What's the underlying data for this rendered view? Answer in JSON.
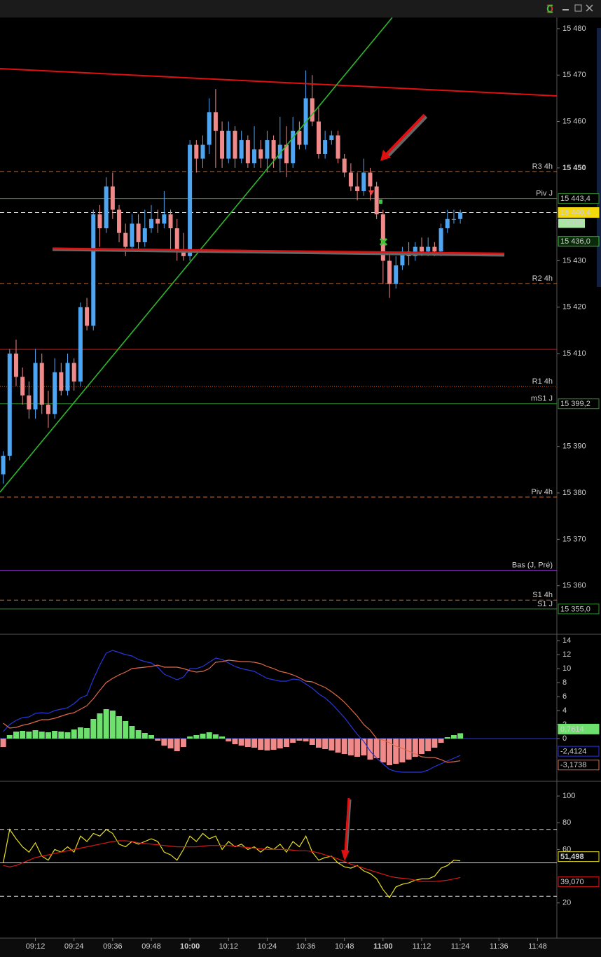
{
  "chart_data": [
    {
      "type": "candlestick",
      "x": [
        "09:02",
        "09:04",
        "09:06",
        "09:08",
        "09:10",
        "09:12",
        "09:14",
        "09:16",
        "09:18",
        "09:20",
        "09:22",
        "09:24",
        "09:26",
        "09:28",
        "09:30",
        "09:32",
        "09:34",
        "09:36",
        "09:38",
        "09:40",
        "09:42",
        "09:44",
        "09:46",
        "09:48",
        "09:50",
        "09:52",
        "09:54",
        "09:56",
        "09:58",
        "10:00",
        "10:02",
        "10:04",
        "10:06",
        "10:08",
        "10:10",
        "10:12",
        "10:14",
        "10:16",
        "10:18",
        "10:20",
        "10:22",
        "10:24",
        "10:26",
        "10:28",
        "10:30",
        "10:32",
        "10:34",
        "10:36",
        "10:38",
        "10:40",
        "10:42",
        "10:44",
        "10:46",
        "10:48",
        "10:50",
        "10:52",
        "10:54",
        "10:56",
        "10:58",
        "11:00",
        "11:02",
        "11:04",
        "11:06",
        "11:08",
        "11:10",
        "11:12",
        "11:14",
        "11:16",
        "11:18",
        "11:20",
        "11:22",
        "11:24"
      ],
      "open": [
        15384,
        15388,
        15410,
        15405,
        15401,
        15398,
        15408,
        15399,
        15397,
        15406,
        15402,
        15408,
        15404,
        15420,
        15416,
        15440,
        15437,
        15446,
        15441,
        15436,
        15433,
        15438,
        15434,
        15437,
        15439,
        15438,
        15440,
        15437,
        15432,
        15431,
        15455,
        15452,
        15455,
        15462,
        15458,
        15452,
        15458,
        15452,
        15456,
        15451,
        15454,
        15452,
        15456,
        15452,
        15455,
        15451,
        15458,
        15455,
        15465,
        15460,
        15453,
        15456,
        15457,
        15452,
        15449,
        15446,
        15445,
        15449,
        15446,
        15440,
        15430,
        15425,
        15429,
        15432,
        15431,
        15433,
        15432,
        15433,
        15432,
        15437,
        15439,
        15439
      ],
      "high": [
        15389,
        15411,
        15413,
        15407,
        15404,
        15411,
        15410,
        15402,
        15409,
        15408,
        15410,
        15409,
        15421,
        15422,
        15441,
        15442,
        15448,
        15449,
        15442,
        15438,
        15440,
        15440,
        15441,
        15442,
        15441,
        15445,
        15441,
        15439,
        15436,
        15456,
        15456,
        15457,
        15465,
        15467,
        15460,
        15460,
        15459,
        15458,
        15457,
        15459,
        15456,
        15458,
        15457,
        15461,
        15459,
        15461,
        15460,
        15471,
        15470,
        15463,
        15458,
        15458,
        15458,
        15453,
        15451,
        15449,
        15452,
        15450,
        15447,
        15441,
        15432,
        15431,
        15433,
        15434,
        15434,
        15435,
        15435,
        15434,
        15438,
        15441,
        15441,
        15441
      ],
      "low": [
        15382,
        15387,
        15403,
        15399,
        15396,
        15396,
        15397,
        15394,
        15396,
        15401,
        15401,
        15402,
        15403,
        15415,
        15415,
        15433,
        15436,
        15439,
        15434,
        15431,
        15432,
        15432,
        15433,
        15436,
        15436,
        15437,
        15432,
        15430,
        15430,
        15430,
        15449,
        15450,
        15453,
        15450,
        15450,
        15451,
        15450,
        15451,
        15450,
        15450,
        15450,
        15449,
        15450,
        15449,
        15448,
        15450,
        15454,
        15454,
        15459,
        15452,
        15452,
        15455,
        15451,
        15448,
        15445,
        15443,
        15444,
        15443,
        15439,
        15425,
        15422,
        15424,
        15428,
        15429,
        15430,
        15431,
        15431,
        15431,
        15431,
        15436,
        15438,
        15438
      ],
      "close": [
        15388,
        15410,
        15405,
        15401,
        15398,
        15408,
        15399,
        15397,
        15406,
        15402,
        15408,
        15404,
        15420,
        15416,
        15440,
        15437,
        15446,
        15441,
        15436,
        15433,
        15438,
        15434,
        15437,
        15439,
        15438,
        15440,
        15437,
        15432,
        15431,
        15455,
        15452,
        15455,
        15462,
        15458,
        15452,
        15458,
        15452,
        15456,
        15451,
        15454,
        15452,
        15456,
        15452,
        15455,
        15451,
        15458,
        15455,
        15465,
        15460,
        15453,
        15456,
        15457,
        15452,
        15449,
        15446,
        15445,
        15449,
        15446,
        15440,
        15430,
        15425,
        15429,
        15432,
        15431,
        15433,
        15432,
        15433,
        15432,
        15437,
        15439,
        15439,
        15440.4
      ],
      "close_label": "15 440,4",
      "countdown": "1m19s",
      "up_color": "#4ea6f2",
      "down_color": "#f08a8a",
      "xlim": [
        "09:01",
        "11:54"
      ],
      "xticks": [
        "09:12",
        "09:24",
        "09:36",
        "09:48",
        "10:00",
        "10:12",
        "10:24",
        "10:36",
        "10:48",
        "11:00",
        "11:12",
        "11:24",
        "11:36",
        "11:48"
      ],
      "ylim": [
        15349.7,
        15482.4
      ],
      "yticks": [
        {
          "value": 15480,
          "label": "15 480"
        },
        {
          "value": 15470,
          "label": "15 470"
        },
        {
          "value": 15460,
          "label": "15 460"
        },
        {
          "value": 15450,
          "label": "15 450",
          "bold": true
        },
        {
          "value": 15430,
          "label": "15 430"
        },
        {
          "value": 15420,
          "label": "15 420"
        },
        {
          "value": 15410,
          "label": "15 410"
        },
        {
          "value": 15390,
          "label": "15 390"
        },
        {
          "value": 15380,
          "label": "15 380"
        },
        {
          "value": 15370,
          "label": "15 370"
        },
        {
          "value": 15360,
          "label": "15 360"
        }
      ],
      "ma_last": {
        "value": 15436.0,
        "label": "15 436,0",
        "color": "#35c035"
      },
      "levels": [
        {
          "name": "R3 4h",
          "value": 15449.2,
          "color": "#d2691e",
          "style": "dashed"
        },
        {
          "name": "Piv J",
          "value": 15443.4,
          "label": "15 443,4",
          "color": "#2f8f2f",
          "style": "solid"
        },
        {
          "value": 15440.4,
          "color": "#dddddd",
          "style": "dashed"
        },
        {
          "name": "R2 4h",
          "value": 15425.1,
          "color": "#d2691e",
          "style": "dashed"
        },
        {
          "value": 15410.9,
          "color": "#e01010",
          "style": "solid"
        },
        {
          "name": "R1 4h",
          "value": 15402.9,
          "color": "#d2691e",
          "style": "dotted"
        },
        {
          "name": "mS1 J",
          "value": 15399.2,
          "label": "15 399,2",
          "color": "#2f8f2f",
          "style": "solid"
        },
        {
          "name": "Piv 4h",
          "value": 15379.1,
          "color": "#d2691e",
          "style": "dashed"
        },
        {
          "name": "Bas (J, Pré)",
          "value": 15363.3,
          "color": "#a040e0",
          "style": "solid"
        },
        {
          "name": "S1 4h",
          "value": 15356.9,
          "color": "#d2691e",
          "style": "dashed"
        },
        {
          "name": "S1 J",
          "value": 15355.0,
          "label": "15 355,0",
          "color": "#2f8f2f",
          "style": "solid"
        }
      ]
    },
    {
      "type": "macd",
      "histogram": {
        "up_color": "#6ee06e",
        "down_color": "#f08a8a",
        "values": [
          -1.2,
          0.5,
          1.0,
          1.1,
          1.0,
          1.2,
          1.0,
          0.9,
          1.1,
          1.0,
          0.9,
          1.3,
          1.6,
          1.5,
          2.8,
          3.6,
          4.2,
          4.0,
          3.2,
          2.5,
          1.8,
          1.2,
          0.8,
          0.5,
          -0.3,
          -1.0,
          -1.4,
          -1.8,
          -1.2,
          0.3,
          0.5,
          0.7,
          0.9,
          0.6,
          0.3,
          -0.4,
          -0.8,
          -1.0,
          -1.2,
          -1.3,
          -1.6,
          -1.7,
          -1.6,
          -1.4,
          -1.2,
          -0.6,
          -0.3,
          -0.4,
          -0.9,
          -1.3,
          -1.5,
          -1.7,
          -2.0,
          -2.2,
          -2.4,
          -2.6,
          -2.4,
          -3.0,
          -2.8,
          -3.4,
          -3.8,
          -3.6,
          -3.4,
          -3.0,
          -2.6,
          -2.2,
          -1.8,
          -1.3,
          -0.6,
          0.2,
          0.5,
          0.7614
        ],
        "last_label": "0,7614"
      },
      "series": [
        {
          "color": "#2a36d8",
          "last_label": "-2,4124",
          "values": [
            1.0,
            2.0,
            2.6,
            3.0,
            3.1,
            3.6,
            3.7,
            3.6,
            4.0,
            4.2,
            4.4,
            5.0,
            5.8,
            6.2,
            8.5,
            10.5,
            12.2,
            12.6,
            12.3,
            12.0,
            11.8,
            11.3,
            11.0,
            10.8,
            10.2,
            9.2,
            8.8,
            8.4,
            8.8,
            10.0,
            10.0,
            10.3,
            10.9,
            11.5,
            11.3,
            10.8,
            10.3,
            10.0,
            9.8,
            9.6,
            9.1,
            8.6,
            8.4,
            8.2,
            8.2,
            8.5,
            8.4,
            7.8,
            7.2,
            6.4,
            5.8,
            5.0,
            4.0,
            3.0,
            1.8,
            0.6,
            -0.4,
            -1.8,
            -2.8,
            -3.6,
            -4.4,
            -4.7,
            -4.8,
            -4.8,
            -4.8,
            -4.8,
            -4.5,
            -4.0,
            -3.6,
            -3.2,
            -2.8,
            -2.4124
          ]
        },
        {
          "color": "#e06848",
          "last_label": "-3,1738",
          "values": [
            2.2,
            1.5,
            1.6,
            1.9,
            2.1,
            2.4,
            2.7,
            2.7,
            2.9,
            3.2,
            3.5,
            3.7,
            4.2,
            4.7,
            5.7,
            6.9,
            8.0,
            8.6,
            9.1,
            9.5,
            10.0,
            10.1,
            10.2,
            10.3,
            10.5,
            10.2,
            10.2,
            10.2,
            10.0,
            9.7,
            9.5,
            9.6,
            10.0,
            10.9,
            11.0,
            11.2,
            11.1,
            11.0,
            11.0,
            10.9,
            10.7,
            10.3,
            10.0,
            9.6,
            9.4,
            9.1,
            8.7,
            8.2,
            8.1,
            7.7,
            7.3,
            6.7,
            6.0,
            5.2,
            4.2,
            3.2,
            2.0,
            1.2,
            0.0,
            -0.2,
            -0.6,
            -1.1,
            -1.4,
            -1.8,
            -2.2,
            -2.6,
            -2.7,
            -2.7,
            -3.0,
            -3.4,
            -3.3,
            -3.1738
          ]
        }
      ],
      "levels": [
        {
          "value": 0,
          "color": "#2a36d8",
          "style": "solid"
        }
      ],
      "ylim": [
        -6.0,
        14.8
      ],
      "yticks": [
        0,
        2,
        4,
        6,
        8,
        10,
        12,
        14
      ]
    },
    {
      "type": "line",
      "series": [
        {
          "color": "#e8e020",
          "last_label": "51,498",
          "values": [
            50,
            75,
            68,
            62,
            58,
            65,
            55,
            52,
            60,
            58,
            62,
            58,
            70,
            66,
            72,
            70,
            75,
            72,
            64,
            62,
            66,
            64,
            66,
            68,
            66,
            58,
            56,
            52,
            60,
            70,
            66,
            72,
            68,
            70,
            60,
            66,
            62,
            64,
            60,
            62,
            58,
            62,
            60,
            64,
            58,
            66,
            62,
            70,
            58,
            52,
            54,
            55,
            50,
            47,
            46,
            48,
            44,
            42,
            38,
            30,
            24,
            32,
            34,
            35,
            37,
            38,
            38,
            40,
            46,
            48,
            52,
            51.498
          ]
        },
        {
          "color": "#d81818",
          "last_label": "39,070",
          "values": [
            48,
            47,
            48,
            50,
            52,
            54,
            55,
            56,
            57,
            58,
            59,
            60,
            61,
            62,
            63,
            64,
            65,
            66,
            66.5,
            66.5,
            66,
            65,
            64.5,
            64,
            63.5,
            63,
            62.5,
            62,
            62,
            62,
            62,
            62.5,
            63,
            63,
            63,
            63,
            62.5,
            62,
            61.5,
            61,
            60.5,
            60,
            60,
            60,
            60,
            59.5,
            59,
            59,
            58.5,
            57.5,
            56,
            54.5,
            53,
            51,
            49,
            47.5,
            46,
            44.5,
            43,
            41.5,
            40,
            39,
            38.5,
            38,
            37,
            36,
            36,
            36,
            36.5,
            37,
            38,
            39.07
          ]
        }
      ],
      "levels": [
        {
          "value": 75,
          "color": "#dddddd",
          "style": "dashed"
        },
        {
          "value": 50,
          "color": "#dddddd",
          "style": "solid"
        },
        {
          "value": 25,
          "color": "#dddddd",
          "style": "dashed"
        }
      ],
      "ylim": [
        -6.3,
        110.5
      ],
      "yticks": [
        100,
        80,
        60,
        20
      ]
    }
  ]
}
